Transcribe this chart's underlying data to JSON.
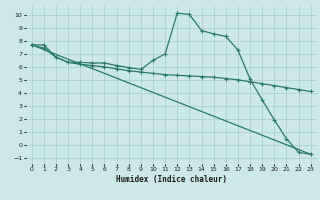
{
  "xlabel": "Humidex (Indice chaleur)",
  "background_color": "#cce8e8",
  "grid_color": "#b0d0d0",
  "line_color": "#2a7a6a",
  "xlim": [
    -0.5,
    23.5
  ],
  "ylim": [
    -1.5,
    10.7
  ],
  "xticks": [
    0,
    1,
    2,
    3,
    4,
    5,
    6,
    7,
    8,
    9,
    10,
    11,
    12,
    13,
    14,
    15,
    16,
    17,
    18,
    19,
    20,
    21,
    22,
    23
  ],
  "yticks": [
    -1,
    0,
    1,
    2,
    3,
    4,
    5,
    6,
    7,
    8,
    9,
    10
  ],
  "line1_x": [
    0,
    1,
    2,
    3,
    4,
    5,
    6,
    7,
    8,
    9,
    10,
    11,
    12,
    13,
    14,
    15,
    16,
    17,
    18,
    19,
    20,
    21,
    22,
    23
  ],
  "line1_y": [
    7.7,
    7.7,
    6.75,
    6.35,
    6.35,
    6.3,
    6.3,
    6.1,
    5.95,
    5.8,
    6.5,
    7.0,
    10.15,
    10.05,
    8.8,
    8.55,
    8.35,
    7.3,
    5.05,
    3.45,
    1.9,
    0.45,
    -0.6,
    -0.75
  ],
  "line2_x": [
    0,
    1,
    2,
    3,
    4,
    5,
    6,
    7,
    8,
    9,
    10,
    11,
    12,
    13,
    14,
    15,
    16,
    17,
    18,
    19,
    20,
    21,
    22,
    23
  ],
  "line2_y": [
    7.7,
    7.45,
    6.75,
    6.35,
    6.2,
    6.1,
    6.0,
    5.85,
    5.7,
    5.6,
    5.5,
    5.4,
    5.35,
    5.3,
    5.25,
    5.2,
    5.1,
    5.0,
    4.85,
    4.7,
    4.55,
    4.4,
    4.25,
    4.1
  ],
  "line3_x": [
    0,
    23
  ],
  "line3_y": [
    7.7,
    -0.75
  ]
}
